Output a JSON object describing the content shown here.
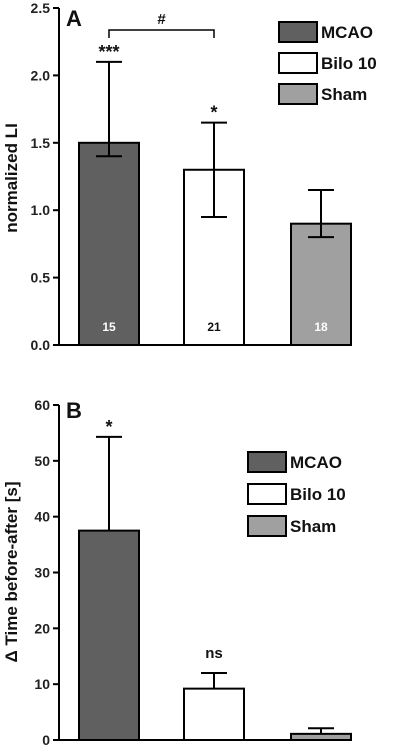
{
  "chart_data": [
    {
      "type": "bar",
      "panel": "A",
      "ylabel": "normalized LI",
      "ylim": [
        0,
        2.5
      ],
      "yticks": [
        "0.0",
        "0.5",
        "1.0",
        "1.5",
        "2.0",
        "2.5"
      ],
      "categories": [
        "MCAO",
        "Bilo 10",
        "Sham"
      ],
      "values": [
        1.5,
        1.3,
        0.9
      ],
      "error_upper": [
        2.1,
        1.65,
        1.15
      ],
      "error_lower": [
        1.4,
        0.95,
        0.8
      ],
      "n_labels": [
        "15",
        "21",
        "18"
      ],
      "annotations": [
        "***",
        "*",
        ""
      ],
      "bracket_label": "#",
      "colors": [
        "#606060",
        "#ffffff",
        "#a0a0a0"
      ],
      "legend": [
        "MCAO",
        "Bilo 10",
        "Sham"
      ],
      "legend_position": "top-right"
    },
    {
      "type": "bar",
      "panel": "B",
      "ylabel": "Δ Time before-after [s]",
      "ylim": [
        0,
        60
      ],
      "yticks": [
        "0",
        "10",
        "20",
        "30",
        "40",
        "50",
        "60"
      ],
      "categories": [
        "MCAO",
        "Bilo 10",
        "Sham"
      ],
      "values": [
        37.5,
        9.2,
        1.1
      ],
      "error_upper": [
        54.3,
        12.0,
        2.1
      ],
      "annotations": [
        "*",
        "ns",
        ""
      ],
      "colors": [
        "#606060",
        "#ffffff",
        "#a0a0a0"
      ],
      "legend": [
        "MCAO",
        "Bilo 10",
        "Sham"
      ],
      "legend_position": "top-right"
    }
  ]
}
